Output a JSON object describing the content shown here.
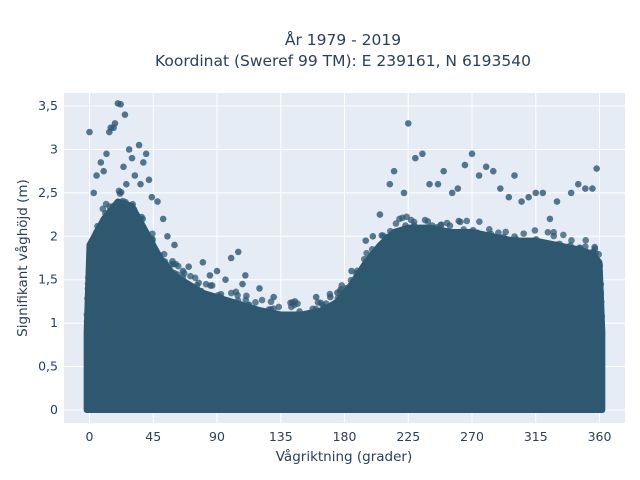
{
  "chart_data": {
    "type": "scatter",
    "title_line1": "År 1979 - 2019",
    "title_line2": "Koordinat (Sweref 99 TM): E 239161, N 6193540",
    "xlabel": "Vågriktning (grader)",
    "ylabel": "Signifikant våghöjd (m)",
    "xlim": [
      -18,
      378
    ],
    "ylim": [
      -0.15,
      3.65
    ],
    "xticks": [
      0,
      45,
      90,
      135,
      180,
      225,
      270,
      315,
      360
    ],
    "xtick_labels": [
      "0",
      "45",
      "90",
      "135",
      "180",
      "225",
      "270",
      "315",
      "360"
    ],
    "yticks": [
      0,
      0.5,
      1,
      1.5,
      2,
      2.5,
      3,
      3.5
    ],
    "ytick_labels": [
      "0",
      "0,5",
      "1",
      "1,5",
      "2",
      "2,5",
      "3",
      "3,5"
    ],
    "grid": true,
    "marker_color": "#2e5870",
    "background_color": "#e5ecf6",
    "dense_envelope": {
      "x": [
        -2,
        0,
        10,
        20,
        30,
        40,
        50,
        60,
        70,
        80,
        90,
        100,
        110,
        120,
        135,
        150,
        165,
        175,
        185,
        195,
        205,
        215,
        225,
        240,
        255,
        270,
        285,
        300,
        315,
        330,
        345,
        355,
        360,
        362
      ],
      "y": [
        0.9,
        1.9,
        2.2,
        2.4,
        2.35,
        2.05,
        1.75,
        1.55,
        1.45,
        1.35,
        1.3,
        1.25,
        1.2,
        1.15,
        1.1,
        1.1,
        1.15,
        1.25,
        1.45,
        1.7,
        1.9,
        2.05,
        2.1,
        2.1,
        2.05,
        2.05,
        2.0,
        1.95,
        1.95,
        1.9,
        1.85,
        1.8,
        1.7,
        0.9
      ]
    },
    "outliers": {
      "x": [
        20,
        22,
        18,
        25,
        28,
        30,
        35,
        38,
        40,
        15,
        12,
        10,
        5,
        8,
        24,
        32,
        26,
        42,
        48,
        55,
        60,
        70,
        80,
        90,
        100,
        105,
        110,
        120,
        130,
        145,
        160,
        175,
        185,
        195,
        205,
        215,
        225,
        230,
        235,
        240,
        250,
        260,
        265,
        270,
        275,
        280,
        290,
        300,
        305,
        310,
        320,
        330,
        340,
        350,
        358,
        0,
        3,
        14,
        17,
        36,
        44,
        52,
        66,
        85,
        96,
        108,
        170,
        200,
        212,
        222,
        246,
        256,
        285,
        296,
        315,
        325,
        345,
        355
      ],
      "y": [
        3.53,
        3.52,
        3.3,
        3.4,
        3.0,
        2.9,
        3.05,
        2.85,
        2.95,
        3.25,
        2.95,
        2.75,
        2.7,
        2.85,
        2.8,
        2.7,
        2.6,
        2.65,
        2.4,
        2.0,
        1.9,
        1.65,
        1.7,
        1.6,
        1.75,
        1.82,
        1.55,
        1.4,
        1.3,
        1.25,
        1.3,
        1.35,
        1.6,
        1.95,
        2.25,
        2.75,
        3.3,
        2.9,
        2.95,
        2.6,
        2.75,
        2.55,
        2.82,
        2.95,
        2.7,
        2.8,
        2.55,
        2.7,
        2.4,
        2.45,
        2.5,
        2.4,
        2.5,
        2.55,
        2.78,
        3.2,
        2.5,
        3.2,
        3.25,
        2.6,
        2.45,
        2.2,
        1.6,
        1.55,
        1.5,
        1.45,
        1.3,
        2.0,
        2.6,
        2.5,
        2.6,
        2.5,
        2.75,
        2.45,
        2.5,
        2.2,
        2.6,
        2.55
      ]
    }
  }
}
